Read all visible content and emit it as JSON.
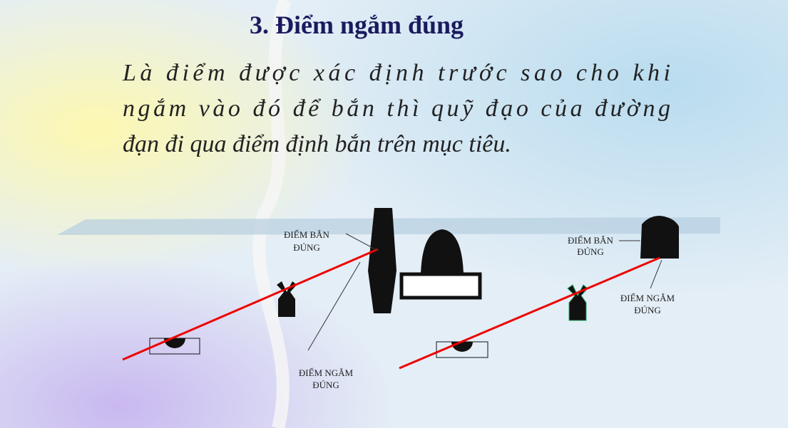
{
  "slide": {
    "title": "3. Điểm ngắm đúng",
    "body": [
      "Là điểm được xác định trước sao cho khi",
      "ngắm vào đó để bắn thì quỹ đạo của đường",
      "đạn đi qua điểm định bắn trên mục tiêu."
    ],
    "diagrams": [
      {
        "shot_label": [
          "ĐIỂM BẮN",
          "ĐÚNG"
        ],
        "aim_label": [
          "ĐIỂM NGẮM",
          "ĐÚNG"
        ]
      },
      {
        "shot_label": [
          "ĐIỂM BẮN",
          "ĐÚNG"
        ],
        "aim_label": [
          "ĐIỂM NGẮM",
          "ĐÚNG"
        ]
      }
    ]
  }
}
